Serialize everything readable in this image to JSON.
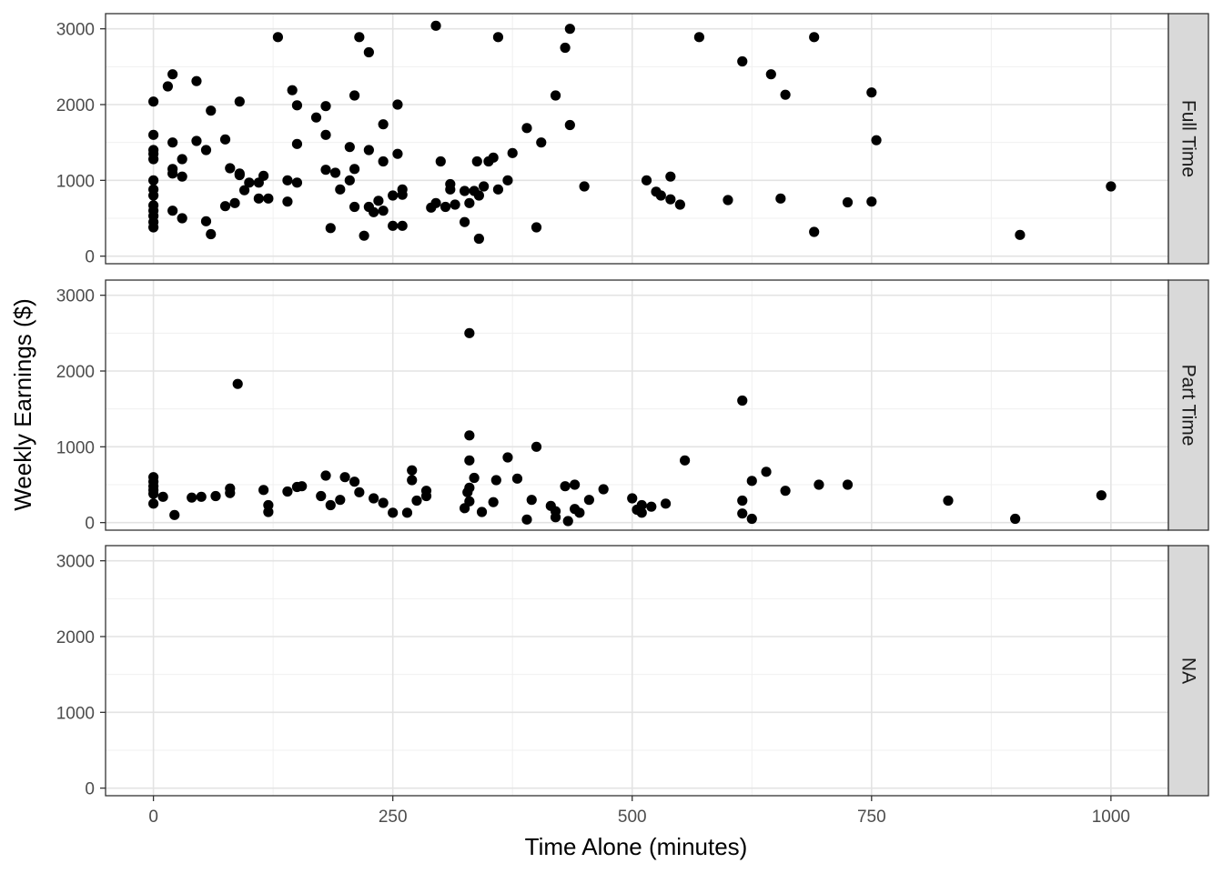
{
  "chart_data": {
    "type": "scatter",
    "xlabel": "Time Alone (minutes)",
    "ylabel": "Weekly Earnings ($)",
    "xlim": [
      -50,
      1060
    ],
    "ylim": [
      -100,
      3200
    ],
    "x_ticks": [
      0,
      250,
      500,
      750,
      1000
    ],
    "y_ticks": [
      0,
      1000,
      2000,
      3000
    ],
    "grid": true,
    "facets": [
      {
        "label": "Full Time",
        "points": [
          [
            0,
            2040
          ],
          [
            0,
            1600
          ],
          [
            0,
            1400
          ],
          [
            0,
            1350
          ],
          [
            0,
            1280
          ],
          [
            0,
            1000
          ],
          [
            0,
            880
          ],
          [
            0,
            800
          ],
          [
            0,
            670
          ],
          [
            0,
            600
          ],
          [
            0,
            530
          ],
          [
            0,
            450
          ],
          [
            0,
            380
          ],
          [
            15,
            2240
          ],
          [
            20,
            2400
          ],
          [
            20,
            1500
          ],
          [
            20,
            1150
          ],
          [
            20,
            1090
          ],
          [
            20,
            600
          ],
          [
            30,
            1280
          ],
          [
            30,
            1050
          ],
          [
            30,
            500
          ],
          [
            45,
            2310
          ],
          [
            45,
            1520
          ],
          [
            55,
            1400
          ],
          [
            55,
            460
          ],
          [
            60,
            1920
          ],
          [
            60,
            290
          ],
          [
            75,
            1540
          ],
          [
            75,
            660
          ],
          [
            80,
            1160
          ],
          [
            85,
            700
          ],
          [
            90,
            2040
          ],
          [
            90,
            1090
          ],
          [
            90,
            1070
          ],
          [
            95,
            870
          ],
          [
            100,
            970
          ],
          [
            110,
            970
          ],
          [
            110,
            760
          ],
          [
            115,
            1060
          ],
          [
            120,
            760
          ],
          [
            130,
            2890
          ],
          [
            140,
            1000
          ],
          [
            140,
            720
          ],
          [
            145,
            2190
          ],
          [
            150,
            1990
          ],
          [
            150,
            1480
          ],
          [
            150,
            970
          ],
          [
            170,
            1830
          ],
          [
            180,
            1980
          ],
          [
            180,
            1600
          ],
          [
            180,
            1140
          ],
          [
            185,
            370
          ],
          [
            190,
            1100
          ],
          [
            195,
            880
          ],
          [
            205,
            1440
          ],
          [
            205,
            1000
          ],
          [
            210,
            2120
          ],
          [
            210,
            1150
          ],
          [
            210,
            650
          ],
          [
            215,
            2890
          ],
          [
            220,
            270
          ],
          [
            225,
            2690
          ],
          [
            225,
            1400
          ],
          [
            225,
            650
          ],
          [
            230,
            580
          ],
          [
            235,
            730
          ],
          [
            240,
            1740
          ],
          [
            240,
            1250
          ],
          [
            240,
            600
          ],
          [
            250,
            800
          ],
          [
            250,
            400
          ],
          [
            255,
            2000
          ],
          [
            255,
            1350
          ],
          [
            260,
            880
          ],
          [
            260,
            810
          ],
          [
            260,
            400
          ],
          [
            290,
            640
          ],
          [
            295,
            3040
          ],
          [
            295,
            700
          ],
          [
            300,
            1250
          ],
          [
            305,
            650
          ],
          [
            310,
            950
          ],
          [
            310,
            880
          ],
          [
            315,
            680
          ],
          [
            325,
            450
          ],
          [
            325,
            860
          ],
          [
            330,
            700
          ],
          [
            335,
            860
          ],
          [
            338,
            1250
          ],
          [
            340,
            230
          ],
          [
            340,
            800
          ],
          [
            345,
            920
          ],
          [
            350,
            1250
          ],
          [
            355,
            1300
          ],
          [
            360,
            2890
          ],
          [
            360,
            880
          ],
          [
            370,
            1000
          ],
          [
            375,
            1360
          ],
          [
            390,
            1690
          ],
          [
            400,
            380
          ],
          [
            405,
            1500
          ],
          [
            420,
            2120
          ],
          [
            430,
            2750
          ],
          [
            435,
            3000
          ],
          [
            435,
            1730
          ],
          [
            450,
            920
          ],
          [
            515,
            1000
          ],
          [
            525,
            850
          ],
          [
            530,
            800
          ],
          [
            540,
            1050
          ],
          [
            540,
            750
          ],
          [
            550,
            680
          ],
          [
            570,
            2890
          ],
          [
            600,
            740
          ],
          [
            615,
            2570
          ],
          [
            645,
            2400
          ],
          [
            655,
            760
          ],
          [
            660,
            2130
          ],
          [
            690,
            2890
          ],
          [
            690,
            320
          ],
          [
            725,
            710
          ],
          [
            750,
            2160
          ],
          [
            750,
            720
          ],
          [
            755,
            1530
          ],
          [
            905,
            280
          ],
          [
            1000,
            920
          ]
        ]
      },
      {
        "label": "Part Time",
        "points": [
          [
            0,
            600
          ],
          [
            0,
            540
          ],
          [
            0,
            480
          ],
          [
            0,
            430
          ],
          [
            0,
            380
          ],
          [
            0,
            250
          ],
          [
            10,
            340
          ],
          [
            22,
            100
          ],
          [
            40,
            330
          ],
          [
            50,
            340
          ],
          [
            65,
            350
          ],
          [
            80,
            450
          ],
          [
            80,
            390
          ],
          [
            88,
            1830
          ],
          [
            115,
            430
          ],
          [
            120,
            230
          ],
          [
            120,
            140
          ],
          [
            140,
            410
          ],
          [
            150,
            470
          ],
          [
            155,
            480
          ],
          [
            175,
            350
          ],
          [
            180,
            620
          ],
          [
            185,
            230
          ],
          [
            195,
            300
          ],
          [
            200,
            600
          ],
          [
            210,
            540
          ],
          [
            215,
            400
          ],
          [
            230,
            320
          ],
          [
            240,
            260
          ],
          [
            250,
            130
          ],
          [
            265,
            130
          ],
          [
            270,
            690
          ],
          [
            270,
            560
          ],
          [
            275,
            290
          ],
          [
            285,
            420
          ],
          [
            285,
            350
          ],
          [
            325,
            190
          ],
          [
            328,
            400
          ],
          [
            330,
            2500
          ],
          [
            330,
            1150
          ],
          [
            330,
            820
          ],
          [
            330,
            460
          ],
          [
            330,
            280
          ],
          [
            335,
            590
          ],
          [
            343,
            140
          ],
          [
            355,
            270
          ],
          [
            358,
            560
          ],
          [
            370,
            860
          ],
          [
            380,
            580
          ],
          [
            390,
            40
          ],
          [
            395,
            300
          ],
          [
            400,
            1000
          ],
          [
            415,
            220
          ],
          [
            420,
            70
          ],
          [
            420,
            150
          ],
          [
            430,
            480
          ],
          [
            433,
            20
          ],
          [
            440,
            500
          ],
          [
            440,
            180
          ],
          [
            445,
            130
          ],
          [
            455,
            300
          ],
          [
            470,
            440
          ],
          [
            500,
            320
          ],
          [
            505,
            170
          ],
          [
            510,
            230
          ],
          [
            510,
            130
          ],
          [
            520,
            210
          ],
          [
            535,
            250
          ],
          [
            555,
            820
          ],
          [
            615,
            1610
          ],
          [
            615,
            290
          ],
          [
            615,
            120
          ],
          [
            625,
            550
          ],
          [
            625,
            50
          ],
          [
            640,
            670
          ],
          [
            660,
            420
          ],
          [
            695,
            500
          ],
          [
            725,
            500
          ],
          [
            830,
            290
          ],
          [
            900,
            50
          ],
          [
            990,
            360
          ]
        ]
      },
      {
        "label": "NA",
        "points": []
      }
    ]
  }
}
